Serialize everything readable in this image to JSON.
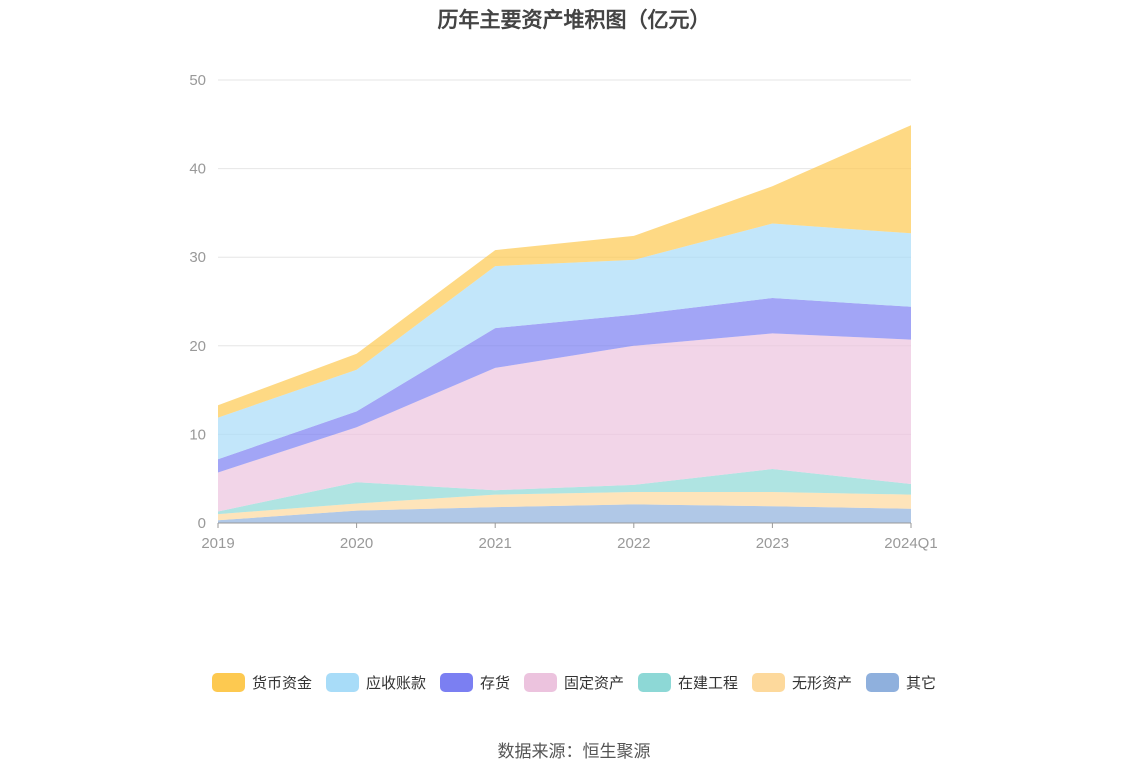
{
  "title": "历年主要资产堆积图（亿元）",
  "source": "数据来源：恒生聚源",
  "chart_data": {
    "type": "area",
    "stacked": true,
    "title": "历年主要资产堆积图（亿元）",
    "categories": [
      "2019",
      "2020",
      "2021",
      "2022",
      "2023",
      "2024Q1"
    ],
    "ylim": [
      0,
      50
    ],
    "yticks": [
      "0",
      "10",
      "20",
      "30",
      "40",
      "50"
    ],
    "grid": true,
    "legend_position": "bottom",
    "series": [
      {
        "name": "其它",
        "color": "#8fb0dd",
        "values": [
          0.3,
          1.4,
          1.8,
          2.1,
          1.9,
          1.6
        ]
      },
      {
        "name": "无形资产",
        "color": "#fdd99c",
        "values": [
          0.7,
          0.8,
          1.4,
          1.4,
          1.6,
          1.6
        ]
      },
      {
        "name": "在建工程",
        "color": "#8dd8d6",
        "values": [
          0.3,
          2.4,
          0.5,
          0.8,
          2.6,
          1.2
        ]
      },
      {
        "name": "固定资产",
        "color": "#ecc3de",
        "values": [
          4.4,
          6.2,
          13.8,
          15.7,
          15.3,
          16.3
        ]
      },
      {
        "name": "存货",
        "color": "#7b7ff2",
        "values": [
          1.5,
          1.8,
          4.5,
          3.5,
          4.0,
          3.7
        ]
      },
      {
        "name": "应收账款",
        "color": "#a8dcf8",
        "values": [
          4.7,
          4.7,
          7.0,
          6.2,
          8.4,
          8.3
        ]
      },
      {
        "name": "货币资金",
        "color": "#fdc950",
        "values": [
          1.4,
          1.8,
          1.8,
          2.7,
          4.2,
          12.2
        ]
      }
    ]
  }
}
